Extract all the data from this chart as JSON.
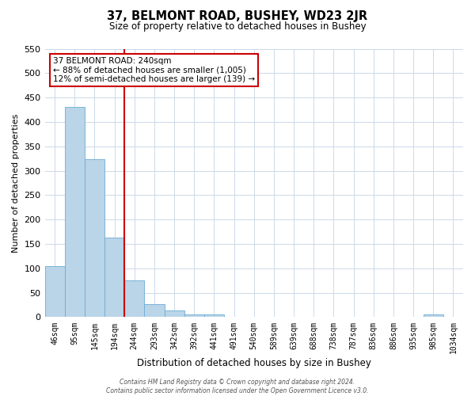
{
  "title": "37, BELMONT ROAD, BUSHEY, WD23 2JR",
  "subtitle": "Size of property relative to detached houses in Bushey",
  "xlabel": "Distribution of detached houses by size in Bushey",
  "ylabel": "Number of detached properties",
  "bar_values": [
    105,
    430,
    323,
    163,
    76,
    27,
    14,
    5,
    5,
    0,
    0,
    0,
    0,
    0,
    0,
    0,
    0,
    0,
    0,
    5,
    0
  ],
  "xtick_labels": [
    "46sqm",
    "95sqm",
    "145sqm",
    "194sqm",
    "244sqm",
    "293sqm",
    "342sqm",
    "392sqm",
    "441sqm",
    "491sqm",
    "540sqm",
    "589sqm",
    "639sqm",
    "688sqm",
    "738sqm",
    "787sqm",
    "836sqm",
    "886sqm",
    "935sqm",
    "985sqm",
    "1034sqm"
  ],
  "bar_color": "#bad4e8",
  "bar_edge_color": "#6aadd5",
  "ylim": [
    0,
    550
  ],
  "yticks": [
    0,
    50,
    100,
    150,
    200,
    250,
    300,
    350,
    400,
    450,
    500,
    550
  ],
  "vline_index": 4,
  "vline_color": "#cc0000",
  "ann_title": "37 BELMONT ROAD: 240sqm",
  "ann_line1": "← 88% of detached houses are smaller (1,005)",
  "ann_line2": "12% of semi-detached houses are larger (139) →",
  "ann_box_facecolor": "#ffffff",
  "ann_box_edgecolor": "#cc0000",
  "footer1": "Contains HM Land Registry data © Crown copyright and database right 2024.",
  "footer2": "Contains public sector information licensed under the Open Government Licence v3.0.",
  "bg_color": "#ffffff",
  "grid_color": "#ccd9e8"
}
